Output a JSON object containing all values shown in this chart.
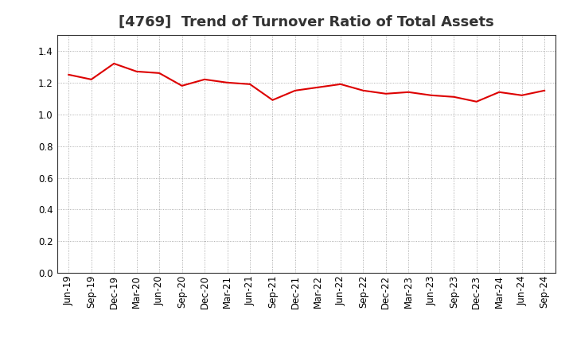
{
  "title": "[4769]  Trend of Turnover Ratio of Total Assets",
  "labels": [
    "Jun-19",
    "Sep-19",
    "Dec-19",
    "Mar-20",
    "Jun-20",
    "Sep-20",
    "Dec-20",
    "Mar-21",
    "Jun-21",
    "Sep-21",
    "Dec-21",
    "Mar-22",
    "Jun-22",
    "Sep-22",
    "Dec-22",
    "Mar-23",
    "Jun-23",
    "Sep-23",
    "Dec-23",
    "Mar-24",
    "Jun-24",
    "Sep-24"
  ],
  "values": [
    1.25,
    1.22,
    1.32,
    1.27,
    1.26,
    1.18,
    1.22,
    1.2,
    1.19,
    1.09,
    1.15,
    1.17,
    1.19,
    1.15,
    1.13,
    1.14,
    1.12,
    1.11,
    1.08,
    1.14,
    1.12,
    1.15
  ],
  "line_color": "#dd0000",
  "background_color": "#ffffff",
  "plot_bg_color": "#ffffff",
  "ylim": [
    0.0,
    1.5
  ],
  "yticks": [
    0.0,
    0.2,
    0.4,
    0.6,
    0.8,
    1.0,
    1.2,
    1.4
  ],
  "title_fontsize": 13,
  "tick_fontsize": 8.5,
  "line_width": 1.5,
  "grid_color": "#999999",
  "spine_color": "#333333"
}
